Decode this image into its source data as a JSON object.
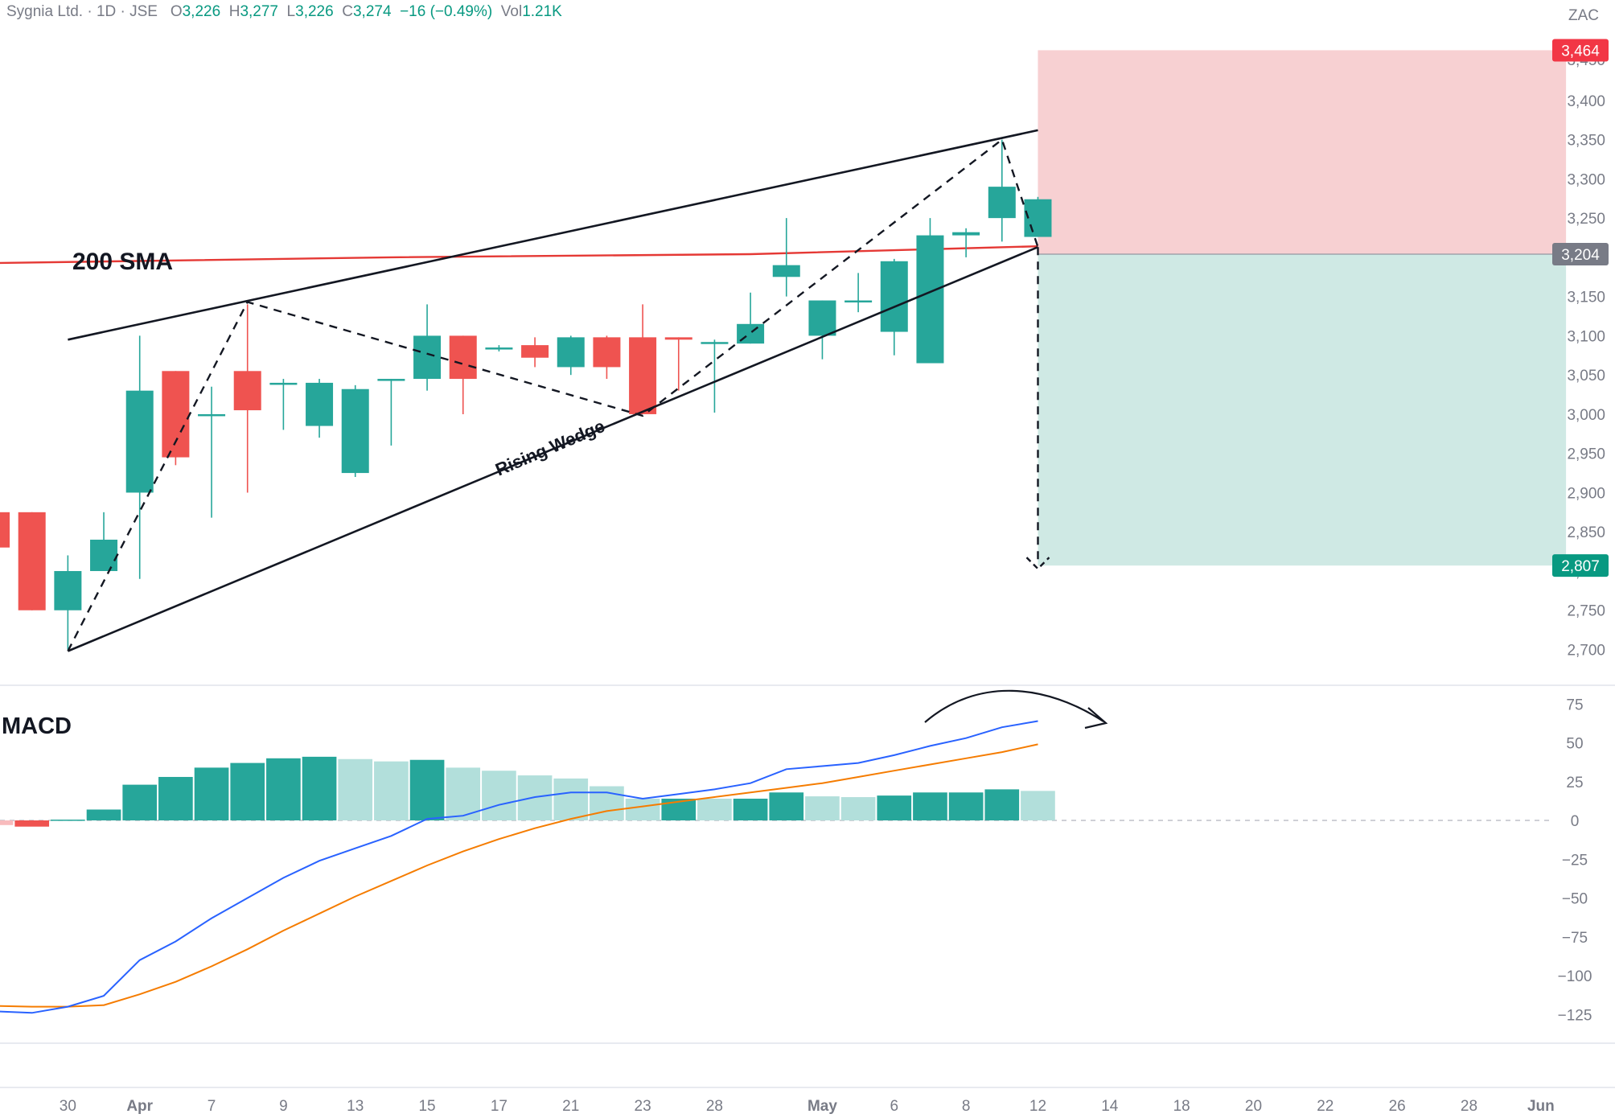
{
  "header": {
    "symbol": "Sygnia Ltd. · 1D · JSE",
    "open_label": "O",
    "open": "3,226",
    "high_label": "H",
    "high": "3,277",
    "low_label": "L",
    "low": "3,226",
    "close_label": "C",
    "close": "3,274",
    "change": "−16 (−0.49%)",
    "vol_label": "Vol",
    "volume": "1.21K"
  },
  "currency": "ZAC",
  "colors": {
    "up": "#26a69a",
    "down": "#ef5350",
    "sma": "#e53935",
    "macd": "#2962ff",
    "signal": "#f57c00",
    "stop_zone": "#f7d0d2",
    "target_zone": "#cfe9e4"
  },
  "chart_data": [
    {
      "type": "candlestick",
      "annotations": {
        "sma_label": "200 SMA",
        "pattern_label": "Rising Wedge"
      },
      "y_ticks": [
        2700,
        2750,
        2800,
        2850,
        2900,
        2950,
        3000,
        3050,
        3100,
        3150,
        3200,
        3250,
        3300,
        3350,
        3400
      ],
      "y_tick_labels": [
        "2,700",
        "2,750",
        "2,800",
        "2,850",
        "2,900",
        "2,950",
        "3,000",
        "3,050",
        "3,100",
        "3,150",
        "3,200",
        "3,250",
        "3,300",
        "3,350",
        "3,400"
      ],
      "price_tags": [
        {
          "label": "3,464",
          "value": 3464,
          "color": "#f23645"
        },
        {
          "label": "3,204",
          "value": 3204,
          "color": "#787b86"
        },
        {
          "label": "2,807",
          "value": 2807,
          "color": "#089981"
        }
      ],
      "x_tick_labels": [
        {
          "label": "6",
          "i": -1
        },
        {
          "label": "30",
          "i": 1
        },
        {
          "label": "Apr",
          "i": 3,
          "bold": true
        },
        {
          "label": "7",
          "i": 5
        },
        {
          "label": "9",
          "i": 7
        },
        {
          "label": "13",
          "i": 9
        },
        {
          "label": "15",
          "i": 11
        },
        {
          "label": "17",
          "i": 13
        },
        {
          "label": "21",
          "i": 15
        },
        {
          "label": "23",
          "i": 17
        },
        {
          "label": "28",
          "i": 19
        },
        {
          "label": "May",
          "i": 22,
          "bold": true
        },
        {
          "label": "6",
          "i": 24
        },
        {
          "label": "8",
          "i": 26
        },
        {
          "label": "12",
          "i": 28
        },
        {
          "label": "14",
          "i": 30
        },
        {
          "label": "18",
          "i": 32
        },
        {
          "label": "20",
          "i": 34
        },
        {
          "label": "22",
          "i": 36
        },
        {
          "label": "26",
          "i": 38
        },
        {
          "label": "28",
          "i": 40
        },
        {
          "label": "Jun",
          "i": 42,
          "bold": true
        }
      ],
      "candles": [
        {
          "i": -1,
          "o": 2875,
          "h": 2875,
          "l": 2830,
          "c": 2830
        },
        {
          "i": 0,
          "o": 2875,
          "h": 2875,
          "l": 2750,
          "c": 2750
        },
        {
          "i": 1,
          "o": 2750,
          "h": 2820,
          "l": 2700,
          "c": 2800
        },
        {
          "i": 2,
          "o": 2800,
          "h": 2875,
          "l": 2800,
          "c": 2840
        },
        {
          "i": 3,
          "o": 2900,
          "h": 3100,
          "l": 2790,
          "c": 3030
        },
        {
          "i": 4,
          "o": 3055,
          "h": 3055,
          "l": 2935,
          "c": 2945
        },
        {
          "i": 5,
          "o": 3000,
          "h": 3035,
          "l": 2868,
          "c": 3000
        },
        {
          "i": 6,
          "o": 3055,
          "h": 3140,
          "l": 2900,
          "c": 3005
        },
        {
          "i": 7,
          "o": 3040,
          "h": 3045,
          "l": 2980,
          "c": 3040
        },
        {
          "i": 8,
          "o": 2985,
          "h": 3045,
          "l": 2970,
          "c": 3040
        },
        {
          "i": 9,
          "o": 2925,
          "h": 3037,
          "l": 2920,
          "c": 3032
        },
        {
          "i": 10,
          "o": 3045,
          "h": 3045,
          "l": 2960,
          "c": 3045
        },
        {
          "i": 11,
          "o": 3045,
          "h": 3140,
          "l": 3030,
          "c": 3100
        },
        {
          "i": 12,
          "o": 3100,
          "h": 3100,
          "l": 3000,
          "c": 3045
        },
        {
          "i": 13,
          "o": 3085,
          "h": 3088,
          "l": 3080,
          "c": 3085
        },
        {
          "i": 14,
          "o": 3088,
          "h": 3098,
          "l": 3060,
          "c": 3072
        },
        {
          "i": 15,
          "o": 3060,
          "h": 3100,
          "l": 3050,
          "c": 3098
        },
        {
          "i": 16,
          "o": 3098,
          "h": 3100,
          "l": 3045,
          "c": 3060
        },
        {
          "i": 17,
          "o": 3098,
          "h": 3140,
          "l": 3000,
          "c": 3000
        },
        {
          "i": 18,
          "o": 3098,
          "h": 3098,
          "l": 3030,
          "c": 3095
        },
        {
          "i": 19,
          "o": 3090,
          "h": 3095,
          "l": 3002,
          "c": 3092
        },
        {
          "i": 20,
          "o": 3090,
          "h": 3155,
          "l": 3090,
          "c": 3115
        },
        {
          "i": 21,
          "o": 3175,
          "h": 3250,
          "l": 3150,
          "c": 3190
        },
        {
          "i": 22,
          "o": 3100,
          "h": 3145,
          "l": 3070,
          "c": 3145
        },
        {
          "i": 23,
          "o": 3145,
          "h": 3180,
          "l": 3130,
          "c": 3145
        },
        {
          "i": 24,
          "o": 3105,
          "h": 3198,
          "l": 3075,
          "c": 3195
        },
        {
          "i": 25,
          "o": 3065,
          "h": 3250,
          "l": 3065,
          "c": 3228
        },
        {
          "i": 26,
          "o": 3228,
          "h": 3237,
          "l": 3200,
          "c": 3232
        },
        {
          "i": 27,
          "o": 3250,
          "h": 3350,
          "l": 3220,
          "c": 3290
        },
        {
          "i": 28,
          "o": 3226,
          "h": 3277,
          "l": 3226,
          "c": 3274
        }
      ],
      "sma_200": [
        [
          -2,
          3192
        ],
        [
          10,
          3200
        ],
        [
          20,
          3204
        ],
        [
          28,
          3214
        ]
      ],
      "wedge_upper": [
        [
          1,
          3095
        ],
        [
          28,
          3362
        ]
      ],
      "wedge_lower": [
        [
          1,
          2698
        ],
        [
          28,
          3213
        ]
      ],
      "zigzag": [
        [
          1,
          2698
        ],
        [
          6,
          3143
        ],
        [
          17,
          2998
        ],
        [
          27,
          3350
        ],
        [
          28,
          3213
        ]
      ],
      "projection": [
        [
          28,
          3213
        ],
        [
          28,
          2807
        ]
      ],
      "stop_zone": {
        "i_from": 28,
        "i_to": 42.7,
        "top": 3464,
        "bottom": 3204
      },
      "target_zone": {
        "i_from": 28,
        "i_to": 42.7,
        "top": 3204,
        "bottom": 2807
      }
    },
    {
      "type": "macd",
      "title": "MACD",
      "y_ticks": [
        75,
        50,
        25,
        0,
        -25,
        -50,
        -75,
        -100,
        -125
      ],
      "y_tick_labels": [
        "75",
        "50",
        "25",
        "0",
        "−25",
        "−50",
        "−75",
        "−100",
        "−125"
      ],
      "histogram": [
        {
          "i": -1,
          "v": -3,
          "tone": "lightdown"
        },
        {
          "i": 0,
          "v": -4,
          "tone": "down"
        },
        {
          "i": 1,
          "v": 0.5,
          "tone": "up"
        },
        {
          "i": 2,
          "v": 7,
          "tone": "up"
        },
        {
          "i": 3,
          "v": 23,
          "tone": "up"
        },
        {
          "i": 4,
          "v": 28,
          "tone": "up"
        },
        {
          "i": 5,
          "v": 34,
          "tone": "up"
        },
        {
          "i": 6,
          "v": 37,
          "tone": "up"
        },
        {
          "i": 7,
          "v": 40,
          "tone": "up"
        },
        {
          "i": 8,
          "v": 41,
          "tone": "up"
        },
        {
          "i": 9,
          "v": 39.5,
          "tone": "light"
        },
        {
          "i": 10,
          "v": 38,
          "tone": "light"
        },
        {
          "i": 11,
          "v": 39,
          "tone": "up"
        },
        {
          "i": 12,
          "v": 34,
          "tone": "light"
        },
        {
          "i": 13,
          "v": 32,
          "tone": "light"
        },
        {
          "i": 14,
          "v": 29,
          "tone": "light"
        },
        {
          "i": 15,
          "v": 27,
          "tone": "light"
        },
        {
          "i": 16,
          "v": 22,
          "tone": "light"
        },
        {
          "i": 17,
          "v": 14,
          "tone": "light"
        },
        {
          "i": 18,
          "v": 14,
          "tone": "up"
        },
        {
          "i": 19,
          "v": 14,
          "tone": "light"
        },
        {
          "i": 20,
          "v": 14,
          "tone": "up"
        },
        {
          "i": 21,
          "v": 18,
          "tone": "up"
        },
        {
          "i": 22,
          "v": 15.5,
          "tone": "light"
        },
        {
          "i": 23,
          "v": 15,
          "tone": "light"
        },
        {
          "i": 24,
          "v": 16,
          "tone": "up"
        },
        {
          "i": 25,
          "v": 18,
          "tone": "up"
        },
        {
          "i": 26,
          "v": 18,
          "tone": "up"
        },
        {
          "i": 27,
          "v": 20,
          "tone": "up"
        },
        {
          "i": 28,
          "v": 19,
          "tone": "light"
        }
      ],
      "macd_line": [
        [
          -2,
          -122
        ],
        [
          0,
          -124
        ],
        [
          1,
          -120
        ],
        [
          2,
          -113
        ],
        [
          3,
          -90
        ],
        [
          4,
          -78
        ],
        [
          5,
          -63
        ],
        [
          6,
          -50
        ],
        [
          7,
          -37
        ],
        [
          8,
          -26
        ],
        [
          9,
          -18
        ],
        [
          10,
          -10
        ],
        [
          11,
          1
        ],
        [
          12,
          3
        ],
        [
          13,
          10
        ],
        [
          14,
          15
        ],
        [
          15,
          18
        ],
        [
          16,
          18
        ],
        [
          17,
          14
        ],
        [
          18,
          17
        ],
        [
          19,
          20
        ],
        [
          20,
          24
        ],
        [
          21,
          33
        ],
        [
          22,
          35
        ],
        [
          23,
          37
        ],
        [
          24,
          42
        ],
        [
          25,
          48
        ],
        [
          26,
          53
        ],
        [
          27,
          60
        ],
        [
          28,
          64
        ]
      ],
      "signal_line": [
        [
          -2,
          -119
        ],
        [
          0,
          -120
        ],
        [
          1,
          -120
        ],
        [
          2,
          -119
        ],
        [
          3,
          -112
        ],
        [
          4,
          -104
        ],
        [
          5,
          -94
        ],
        [
          6,
          -83
        ],
        [
          7,
          -71
        ],
        [
          8,
          -60
        ],
        [
          9,
          -49
        ],
        [
          10,
          -39
        ],
        [
          11,
          -29
        ],
        [
          12,
          -20
        ],
        [
          13,
          -12
        ],
        [
          14,
          -5
        ],
        [
          15,
          1
        ],
        [
          16,
          6
        ],
        [
          17,
          9
        ],
        [
          18,
          12
        ],
        [
          19,
          15
        ],
        [
          20,
          18
        ],
        [
          21,
          21
        ],
        [
          22,
          24
        ],
        [
          23,
          28
        ],
        [
          24,
          32
        ],
        [
          25,
          36
        ],
        [
          26,
          40
        ],
        [
          27,
          44
        ],
        [
          28,
          49
        ]
      ]
    }
  ]
}
